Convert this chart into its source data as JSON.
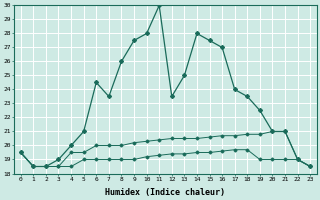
{
  "xlabel": "Humidex (Indice chaleur)",
  "x": [
    0,
    1,
    2,
    3,
    4,
    5,
    6,
    7,
    8,
    9,
    10,
    11,
    12,
    13,
    14,
    15,
    16,
    17,
    18,
    19,
    20,
    21,
    22,
    23
  ],
  "humidex": [
    19.5,
    18.5,
    18.5,
    19.0,
    20.0,
    21.0,
    24.5,
    23.5,
    26.0,
    27.5,
    28.0,
    30.0,
    23.5,
    25.0,
    28.0,
    27.5,
    27.0,
    24.0,
    23.5,
    22.5,
    21.0,
    21.0,
    19.0,
    18.5
  ],
  "min_line": [
    19.5,
    18.5,
    18.5,
    18.5,
    18.5,
    19.0,
    19.0,
    19.0,
    19.0,
    19.0,
    19.2,
    19.3,
    19.4,
    19.4,
    19.5,
    19.5,
    19.6,
    19.7,
    19.7,
    19.0,
    19.0,
    19.0,
    19.0,
    18.5
  ],
  "max_line": [
    19.5,
    18.5,
    18.5,
    18.5,
    19.5,
    19.5,
    20.0,
    20.0,
    20.0,
    20.2,
    20.3,
    20.4,
    20.5,
    20.5,
    20.5,
    20.6,
    20.7,
    20.7,
    20.8,
    20.8,
    21.0,
    21.0,
    19.0,
    18.5
  ],
  "line_color": "#1a6b5a",
  "bg_color": "#ceeae4",
  "grid_color": "#b0d8d0",
  "plot_bg": "#ceeae4",
  "ylim": [
    18,
    30
  ],
  "xlim": [
    -0.5,
    23.5
  ],
  "yticks": [
    18,
    19,
    20,
    21,
    22,
    23,
    24,
    25,
    26,
    27,
    28,
    29,
    30
  ]
}
